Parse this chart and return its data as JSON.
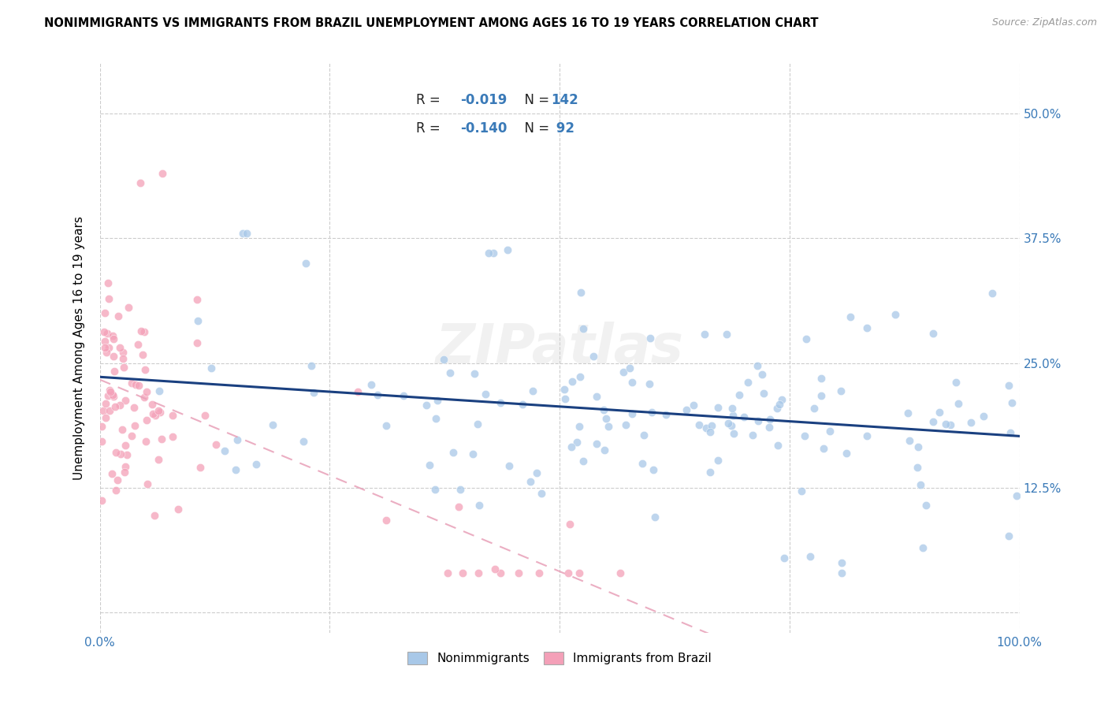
{
  "title": "NONIMMIGRANTS VS IMMIGRANTS FROM BRAZIL UNEMPLOYMENT AMONG AGES 16 TO 19 YEARS CORRELATION CHART",
  "source": "Source: ZipAtlas.com",
  "ylabel": "Unemployment Among Ages 16 to 19 years",
  "xlim": [
    0.0,
    1.0
  ],
  "ylim": [
    -0.02,
    0.55
  ],
  "ytick_vals": [
    0.0,
    0.125,
    0.25,
    0.375,
    0.5
  ],
  "yticklabels": [
    "",
    "12.5%",
    "25.0%",
    "37.5%",
    "50.0%"
  ],
  "nonimmigrant_color": "#a8c8e8",
  "immigrant_color": "#f4a0b8",
  "nonimmigrant_line_color": "#1a4080",
  "immigrant_line_color": "#e8a0b8",
  "R_nonimmigrant": -0.019,
  "N_nonimmigrant": 142,
  "R_immigrant": -0.14,
  "N_immigrant": 92,
  "background_color": "#ffffff",
  "watermark": "ZIPatlas",
  "legend_r1": "R = -0.019   N = 142",
  "legend_r2": "R = -0.140   N =  92",
  "bottom_legend_labels": [
    "Nonimmigrants",
    "Immigrants from Brazil"
  ]
}
